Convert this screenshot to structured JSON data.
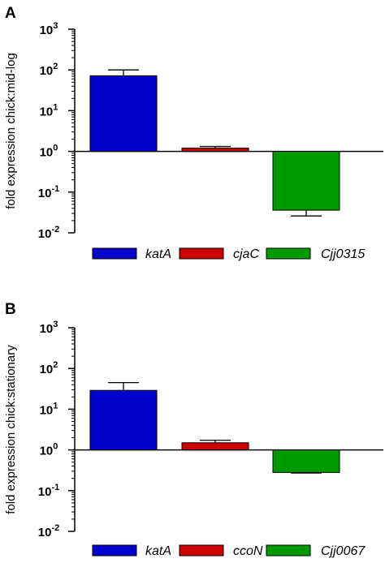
{
  "chart_data": [
    {
      "type": "bar",
      "panel_letter": "A",
      "ylabel": "fold expression chick:mid-log",
      "yscale": "log10",
      "ylim": [
        0.01,
        1000
      ],
      "baseline": 1,
      "ytick_bases": [
        "10",
        "10",
        "10",
        "10",
        "10",
        "10"
      ],
      "ytick_exponents": [
        "3",
        "2",
        "1",
        "0",
        "-1",
        "-2"
      ],
      "ytick_values": [
        1000,
        100,
        10,
        1,
        0.1,
        0.01
      ],
      "categories": [
        "katA",
        "cjaC",
        "Cjj0315"
      ],
      "values": [
        72,
        1.2,
        0.036
      ],
      "errors": [
        100,
        1.32,
        0.026
      ],
      "colors": [
        "#0000cc",
        "#cc0000",
        "#009900"
      ],
      "legend": [
        "katA",
        "cjaC",
        "Cjj0315"
      ],
      "legend_position": "bottom"
    },
    {
      "type": "bar",
      "panel_letter": "B",
      "ylabel": "fold expression chick:stationary",
      "yscale": "log10",
      "ylim": [
        0.01,
        1000
      ],
      "baseline": 1,
      "ytick_bases": [
        "10",
        "10",
        "10",
        "10",
        "10",
        "10"
      ],
      "ytick_exponents": [
        "3",
        "2",
        "1",
        "0",
        "-1",
        "-2"
      ],
      "ytick_values": [
        1000,
        100,
        10,
        1,
        0.1,
        0.01
      ],
      "categories": [
        "katA",
        "ccoN",
        "Cjj0067"
      ],
      "values": [
        29,
        1.5,
        0.28
      ],
      "errors": [
        45,
        1.72,
        0.27
      ],
      "colors": [
        "#0000cc",
        "#cc0000",
        "#009900"
      ],
      "legend": [
        "katA",
        "ccoN",
        "Cjj0067"
      ],
      "legend_position": "bottom"
    }
  ]
}
